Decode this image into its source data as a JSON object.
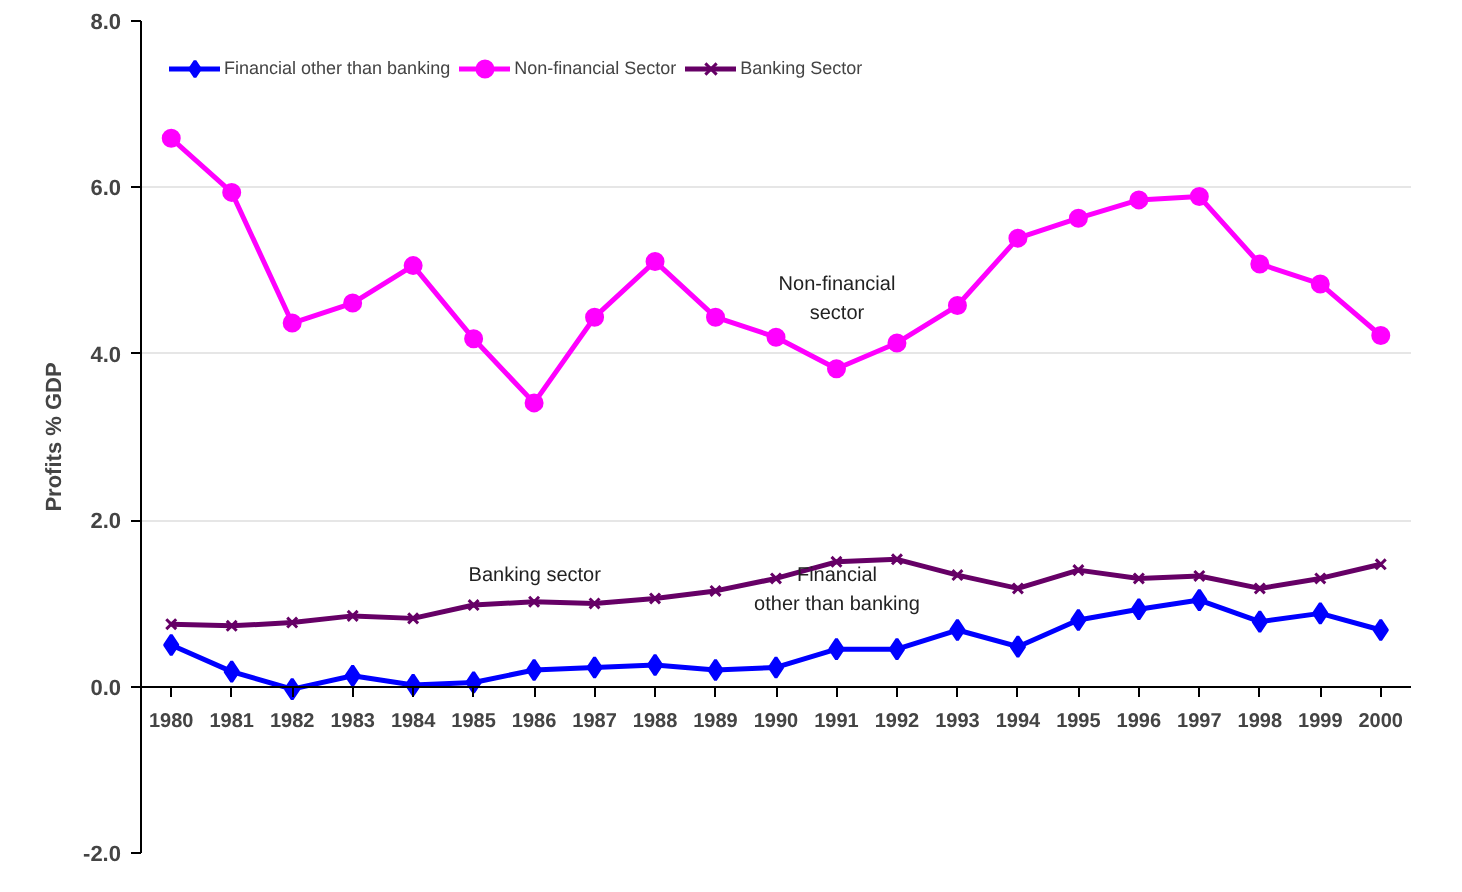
{
  "chart_data": {
    "type": "line",
    "ylabel": "Profits % GDP",
    "categories": [
      "1980",
      "1981",
      "1982",
      "1983",
      "1984",
      "1985",
      "1986",
      "1987",
      "1988",
      "1989",
      "1990",
      "1991",
      "1992",
      "1993",
      "1994",
      "1995",
      "1996",
      "1997",
      "1998",
      "1999",
      "2000"
    ],
    "series": [
      {
        "name": "Financial other than banking",
        "color": "#0000ff",
        "marker": "diamond",
        "values": [
          0.5,
          0.18,
          -0.03,
          0.13,
          0.02,
          0.05,
          0.2,
          0.23,
          0.26,
          0.2,
          0.23,
          0.45,
          0.45,
          0.68,
          0.48,
          0.8,
          0.93,
          1.04,
          0.78,
          0.88,
          0.68
        ]
      },
      {
        "name": "Non-financial Sector",
        "color": "#ff00ff",
        "marker": "circle",
        "values": [
          6.59,
          5.94,
          4.37,
          4.61,
          5.06,
          4.18,
          3.41,
          4.44,
          5.11,
          4.44,
          4.2,
          3.82,
          4.13,
          4.58,
          5.39,
          5.63,
          5.85,
          5.89,
          5.08,
          4.84,
          4.22
        ]
      },
      {
        "name": "Banking Sector",
        "color": "#660066",
        "marker": "cross",
        "values": [
          0.75,
          0.73,
          0.77,
          0.85,
          0.82,
          0.98,
          1.02,
          1.0,
          1.06,
          1.15,
          1.3,
          1.5,
          1.53,
          1.34,
          1.18,
          1.4,
          1.3,
          1.33,
          1.18,
          1.3,
          1.47
        ]
      }
    ],
    "ylim": [
      -2,
      8
    ],
    "yticks": [
      {
        "value": -2,
        "label": "-2.0"
      },
      {
        "value": 0,
        "label": "0.0"
      },
      {
        "value": 2,
        "label": "2.0"
      },
      {
        "value": 4,
        "label": "4.0"
      },
      {
        "value": 6,
        "label": "6.0"
      },
      {
        "value": 8,
        "label": "8.0"
      }
    ],
    "annotations": [
      "Non-financial\nsector",
      "Banking sector",
      "Financial\nother than banking"
    ],
    "grid": "y",
    "legend": "top left",
    "line_style": "solid"
  }
}
